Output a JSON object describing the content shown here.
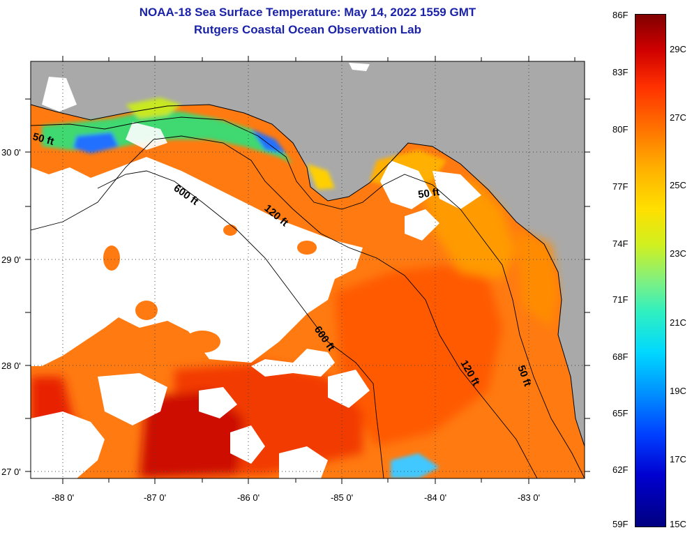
{
  "header": {
    "title": "NOAA-18 Sea Surface Temperature:  May 14, 2022 1559 GMT",
    "subtitle": "Rutgers Coastal Ocean Observation Lab"
  },
  "map": {
    "lon_ticks": [
      "-88 0'",
      "-87 0'",
      "-86 0'",
      "-85 0'",
      "-84 0'",
      "-83 0'"
    ],
    "lat_ticks": [
      "30 0'",
      "29 0'",
      "28 0'",
      "27 0'"
    ],
    "contour_labels": [
      {
        "text": "50 ft"
      },
      {
        "text": "600 ft"
      },
      {
        "text": "120 ft"
      },
      {
        "text": "50 ft"
      },
      {
        "text": "600 ft"
      },
      {
        "text": "120 ft"
      },
      {
        "text": "50 ft"
      }
    ],
    "colors": {
      "land": "#a9a9a9",
      "cloud": "#ffffff",
      "warm": "#ff6a00",
      "hot": "#d80000"
    }
  },
  "colorbar": {
    "fahrenheit": [
      "86F",
      "83F",
      "80F",
      "77F",
      "74F",
      "71F",
      "68F",
      "65F",
      "62F",
      "59F"
    ],
    "celsius": [
      "29C",
      "27C",
      "25C",
      "23C",
      "21C",
      "19C",
      "17C",
      "15C"
    ]
  }
}
